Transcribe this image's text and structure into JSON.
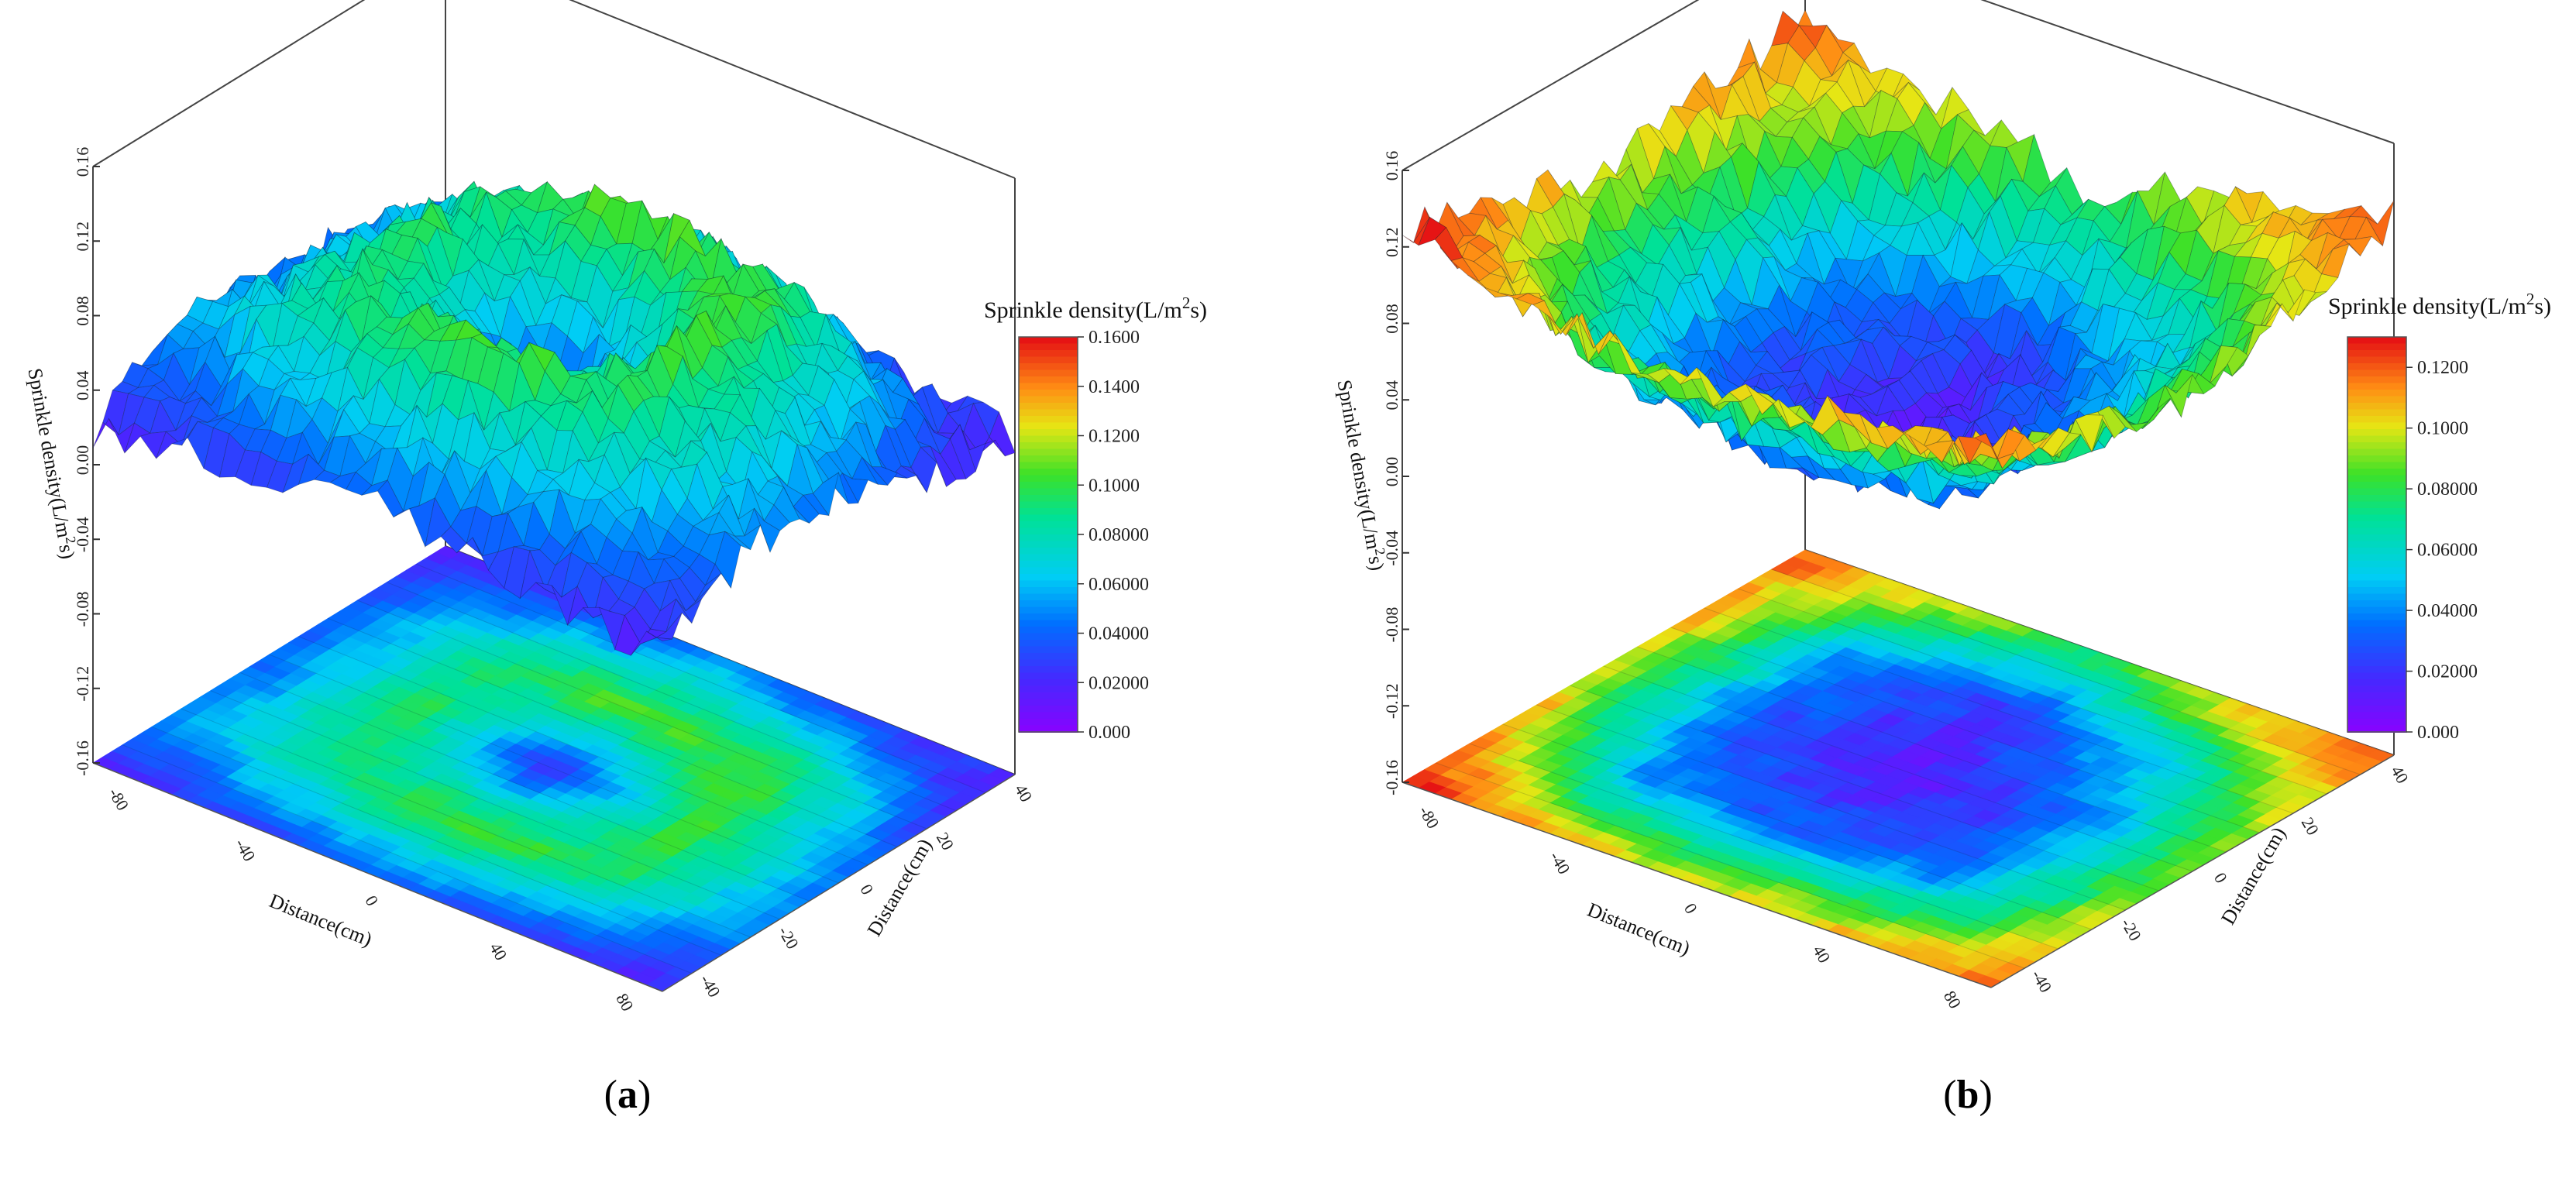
{
  "chart_data": [
    {
      "panel": "a",
      "type": "surface3d",
      "caption_open": "(",
      "caption_letter": "a",
      "caption_close": ")",
      "z_axis_label": "Sprinkle density(L/m²s)",
      "x_axis_label": "Distance(cm)",
      "y_axis_label": "Distance(cm)",
      "z_ticks": [
        "0.16",
        "0.12",
        "0.08",
        "0.04",
        "0.00",
        "-0.04",
        "-0.08",
        "-0.12",
        "-0.16"
      ],
      "zlim": [
        -0.16,
        0.16
      ],
      "x_ticks": [
        "-80",
        "-40",
        "0",
        "40",
        "80"
      ],
      "y_ticks": [
        "40",
        "20",
        "0",
        "-20",
        "-40"
      ],
      "xlim": [
        -90,
        90
      ],
      "ylim": [
        -45,
        45
      ],
      "colorbar": {
        "title": "Sprinkle density(L/m²s)",
        "ticks": [
          "0.1600",
          "0.1400",
          "0.1200",
          "0.1000",
          "0.08000",
          "0.06000",
          "0.04000",
          "0.02000",
          "0.000"
        ],
        "range": [
          0,
          0.16
        ]
      },
      "pattern": "ring",
      "x": [
        -80,
        -40,
        0,
        40,
        80
      ],
      "y": [
        -40,
        -20,
        0,
        20,
        40
      ],
      "z": [
        [
          0.02,
          0.03,
          0.04,
          0.03,
          0.02
        ],
        [
          0.05,
          0.09,
          0.11,
          0.09,
          0.05
        ],
        [
          0.04,
          0.1,
          0.02,
          0.11,
          0.05
        ],
        [
          0.04,
          0.09,
          0.11,
          0.1,
          0.03
        ],
        [
          0.02,
          0.03,
          0.05,
          0.03,
          0.02
        ]
      ],
      "z_range": [
        0.0,
        0.12
      ]
    },
    {
      "panel": "b",
      "type": "surface3d",
      "caption_open": "(",
      "caption_letter": "b",
      "caption_close": ")",
      "z_axis_label": "Sprinkle density(L/m²s)",
      "x_axis_label": "Distance(cm)",
      "y_axis_label": "Distance(cm)",
      "z_ticks": [
        "0.16",
        "0.12",
        "0.08",
        "0.04",
        "0.00",
        "-0.04",
        "-0.08",
        "-0.12",
        "-0.16"
      ],
      "zlim": [
        -0.16,
        0.16
      ],
      "x_ticks": [
        "-80",
        "-40",
        "0",
        "40",
        "80"
      ],
      "y_ticks": [
        "40",
        "20",
        "0",
        "-20",
        "-40"
      ],
      "xlim": [
        -90,
        90
      ],
      "ylim": [
        -45,
        45
      ],
      "colorbar": {
        "title": "Sprinkle density(L/m²s)",
        "ticks": [
          "0.1200",
          "0.1000",
          "0.08000",
          "0.06000",
          "0.04000",
          "0.02000",
          "0.000"
        ],
        "range": [
          0,
          0.13
        ]
      },
      "pattern": "bowl",
      "x": [
        -80,
        -40,
        0,
        40,
        80
      ],
      "y": [
        -40,
        -20,
        0,
        20,
        40
      ],
      "z": [
        [
          0.13,
          0.11,
          0.1,
          0.11,
          0.12
        ],
        [
          0.11,
          0.04,
          0.03,
          0.04,
          0.1
        ],
        [
          0.1,
          0.03,
          0.01,
          0.03,
          0.09
        ],
        [
          0.11,
          0.04,
          0.02,
          0.05,
          0.1
        ],
        [
          0.12,
          0.1,
          0.08,
          0.11,
          0.12
        ]
      ],
      "z_range": [
        0.0,
        0.14
      ]
    }
  ]
}
